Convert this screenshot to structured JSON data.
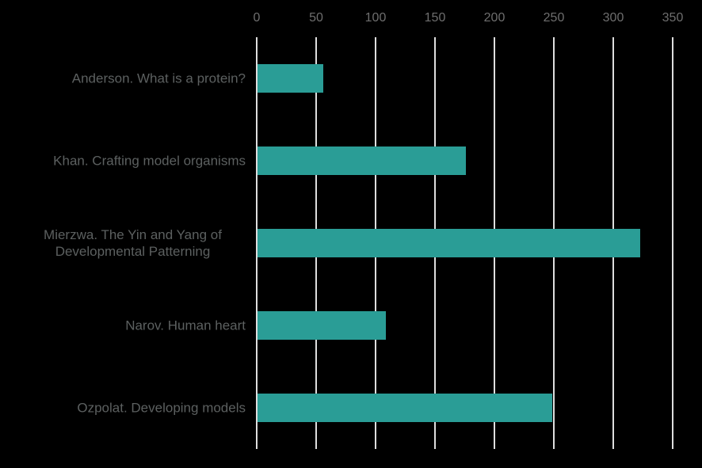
{
  "chart_data": {
    "type": "bar",
    "orientation": "horizontal",
    "title": "",
    "xlabel": "",
    "ylabel": "",
    "categories": [
      "Anderson. What is a protein?",
      "Khan. Crafting model organisms",
      "Mierzwa. The Yin and Yang of Developmental Patterning",
      "Narov. Human heart",
      "Ozpolat. Developing models"
    ],
    "values": [
      55,
      175,
      322,
      108,
      248
    ],
    "x_ticks": [
      "0",
      "50",
      "100",
      "150",
      "200",
      "250",
      "300",
      "350"
    ],
    "x_tick_values": [
      0,
      50,
      100,
      150,
      200,
      250,
      300,
      350
    ],
    "xlim": [
      0,
      350
    ],
    "grid": true,
    "legend": false,
    "axis_position": "top",
    "colors": {
      "bar": "#2a9d96",
      "background": "#000000",
      "gridline": "#dedede",
      "tick_label": "#6e6e6e",
      "category_label": "#5c6060"
    }
  }
}
